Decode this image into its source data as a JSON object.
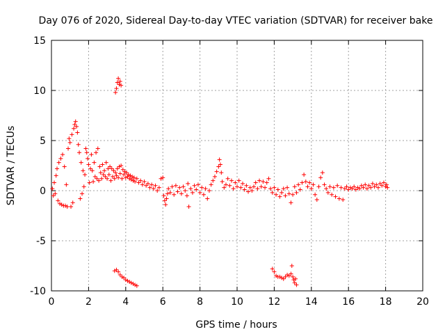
{
  "chart_data": {
    "type": "scatter",
    "title": "Day 076 of 2020, Sidereal Day-to-day VTEC variation (SDTVAR) for receiver bake",
    "xlabel": "GPS time / hours",
    "ylabel": "SDTVAR / TECUs",
    "xlim": [
      0,
      20
    ],
    "ylim": [
      -10,
      15
    ],
    "xticks": [
      0,
      2,
      4,
      6,
      8,
      10,
      12,
      14,
      16,
      18,
      20
    ],
    "yticks": [
      -10,
      -5,
      0,
      5,
      10,
      15
    ],
    "grid": true,
    "marker": "+",
    "color": "#ff0000",
    "series": [
      {
        "name": "SDTVAR",
        "points": [
          [
            0.05,
            0.2
          ],
          [
            0.1,
            -0.5
          ],
          [
            0.15,
            0.8
          ],
          [
            0.2,
            -0.3
          ],
          [
            0.25,
            1.5
          ],
          [
            0.3,
            2.2
          ],
          [
            0.35,
            -1.0
          ],
          [
            0.4,
            2.8
          ],
          [
            0.45,
            -1.3
          ],
          [
            0.5,
            3.2
          ],
          [
            0.55,
            -1.4
          ],
          [
            0.6,
            3.6
          ],
          [
            0.65,
            -1.5
          ],
          [
            0.7,
            2.4
          ],
          [
            0.75,
            -1.5
          ],
          [
            0.8,
            0.6
          ],
          [
            0.85,
            -1.6
          ],
          [
            0.9,
            4.2
          ],
          [
            0.95,
            5.2
          ],
          [
            1.0,
            4.8
          ],
          [
            1.05,
            -1.6
          ],
          [
            1.1,
            5.6
          ],
          [
            1.15,
            -1.2
          ],
          [
            1.2,
            6.2
          ],
          [
            1.25,
            6.6
          ],
          [
            1.3,
            6.9
          ],
          [
            1.35,
            6.4
          ],
          [
            1.4,
            5.8
          ],
          [
            1.45,
            4.6
          ],
          [
            1.5,
            3.8
          ],
          [
            1.55,
            -0.8
          ],
          [
            1.6,
            2.8
          ],
          [
            1.65,
            -0.3
          ],
          [
            1.7,
            2.0
          ],
          [
            1.75,
            0.4
          ],
          [
            1.8,
            1.6
          ],
          [
            1.85,
            4.2
          ],
          [
            1.9,
            3.8
          ],
          [
            1.95,
            3.2
          ],
          [
            2.0,
            2.6
          ],
          [
            2.05,
            0.8
          ],
          [
            2.1,
            2.2
          ],
          [
            2.15,
            3.6
          ],
          [
            2.2,
            2.0
          ],
          [
            2.25,
            0.9
          ],
          [
            2.3,
            2.8
          ],
          [
            2.35,
            1.4
          ],
          [
            2.4,
            3.8
          ],
          [
            2.45,
            1.2
          ],
          [
            2.5,
            4.2
          ],
          [
            2.55,
            1.0
          ],
          [
            2.6,
            2.4
          ],
          [
            2.65,
            1.8
          ],
          [
            2.7,
            1.2
          ],
          [
            2.75,
            2.6
          ],
          [
            2.8,
            1.6
          ],
          [
            2.85,
            2.0
          ],
          [
            2.9,
            1.4
          ],
          [
            2.95,
            2.8
          ],
          [
            3.0,
            1.2
          ],
          [
            3.05,
            2.2
          ],
          [
            3.1,
            1.6
          ],
          [
            3.15,
            2.4
          ],
          [
            3.2,
            1.0
          ],
          [
            3.25,
            2.2
          ],
          [
            3.3,
            1.4
          ],
          [
            3.35,
            2.0
          ],
          [
            3.4,
            1.2
          ],
          [
            3.45,
            1.8
          ],
          [
            3.5,
            1.5
          ],
          [
            3.55,
            2.2
          ],
          [
            3.6,
            1.3
          ],
          [
            3.65,
            2.4
          ],
          [
            3.7,
            1.7
          ],
          [
            3.75,
            2.5
          ],
          [
            3.8,
            1.2
          ],
          [
            3.85,
            2.1
          ],
          [
            3.9,
            1.6
          ],
          [
            3.95,
            1.9
          ],
          [
            4.0,
            1.3
          ],
          [
            4.05,
            1.8
          ],
          [
            4.1,
            1.4
          ],
          [
            4.15,
            1.6
          ],
          [
            4.2,
            1.2
          ],
          [
            4.25,
            1.5
          ],
          [
            4.3,
            1.1
          ],
          [
            4.35,
            1.4
          ],
          [
            4.4,
            1.0
          ],
          [
            4.45,
            1.3
          ],
          [
            4.5,
            0.9
          ],
          [
            4.6,
            1.2
          ],
          [
            4.7,
            0.8
          ],
          [
            4.8,
            1.0
          ],
          [
            4.9,
            0.6
          ],
          [
            5.0,
            0.9
          ],
          [
            5.1,
            0.5
          ],
          [
            5.2,
            0.7
          ],
          [
            5.3,
            0.3
          ],
          [
            5.4,
            0.6
          ],
          [
            5.5,
            0.2
          ],
          [
            5.6,
            0.5
          ],
          [
            5.7,
            0.0
          ],
          [
            5.8,
            0.3
          ],
          [
            5.9,
            1.2
          ],
          [
            6.0,
            1.3
          ],
          [
            6.05,
            -0.5
          ],
          [
            6.1,
            -1.0
          ],
          [
            6.15,
            -1.4
          ],
          [
            6.2,
            -0.8
          ],
          [
            6.25,
            -0.3
          ],
          [
            6.3,
            0.2
          ],
          [
            6.4,
            -0.2
          ],
          [
            6.5,
            0.4
          ],
          [
            6.6,
            -0.4
          ],
          [
            6.7,
            0.5
          ],
          [
            6.8,
            -0.1
          ],
          [
            6.9,
            0.3
          ],
          [
            7.0,
            -0.3
          ],
          [
            7.1,
            0.4
          ],
          [
            7.2,
            0.0
          ],
          [
            7.3,
            -0.5
          ],
          [
            7.35,
            0.7
          ],
          [
            7.4,
            -1.6
          ],
          [
            7.5,
            0.2
          ],
          [
            7.6,
            -0.2
          ],
          [
            7.7,
            0.5
          ],
          [
            7.8,
            0.1
          ],
          [
            7.9,
            0.6
          ],
          [
            8.0,
            -0.2
          ],
          [
            8.1,
            0.3
          ],
          [
            8.2,
            -0.4
          ],
          [
            8.3,
            0.2
          ],
          [
            8.4,
            -0.8
          ],
          [
            8.5,
            0.0
          ],
          [
            8.6,
            0.6
          ],
          [
            8.7,
            1.0
          ],
          [
            8.8,
            1.4
          ],
          [
            8.9,
            1.9
          ],
          [
            9.0,
            2.4
          ],
          [
            9.05,
            3.1
          ],
          [
            9.1,
            2.6
          ],
          [
            9.15,
            1.8
          ],
          [
            9.2,
            0.9
          ],
          [
            9.3,
            0.3
          ],
          [
            9.4,
            0.6
          ],
          [
            9.5,
            1.2
          ],
          [
            9.6,
            0.5
          ],
          [
            9.7,
            1.0
          ],
          [
            9.8,
            0.2
          ],
          [
            9.9,
            0.8
          ],
          [
            10.0,
            0.4
          ],
          [
            10.1,
            1.0
          ],
          [
            10.2,
            0.3
          ],
          [
            10.3,
            0.7
          ],
          [
            10.4,
            0.1
          ],
          [
            10.5,
            0.5
          ],
          [
            10.6,
            -0.1
          ],
          [
            10.7,
            0.3
          ],
          [
            10.8,
            0.0
          ],
          [
            10.9,
            0.4
          ],
          [
            11.0,
            0.8
          ],
          [
            11.1,
            0.2
          ],
          [
            11.2,
            1.0
          ],
          [
            11.3,
            0.4
          ],
          [
            11.4,
            0.9
          ],
          [
            11.5,
            0.3
          ],
          [
            11.6,
            0.8
          ],
          [
            11.7,
            1.2
          ],
          [
            11.8,
            0.2
          ],
          [
            11.9,
            -0.2
          ],
          [
            12.0,
            0.3
          ],
          [
            12.1,
            -0.4
          ],
          [
            12.2,
            0.1
          ],
          [
            12.3,
            -0.6
          ],
          [
            12.4,
            -0.2
          ],
          [
            12.5,
            0.2
          ],
          [
            12.6,
            -0.5
          ],
          [
            12.7,
            0.3
          ],
          [
            12.8,
            -0.3
          ],
          [
            12.9,
            -1.2
          ],
          [
            13.0,
            -0.4
          ],
          [
            13.1,
            0.4
          ],
          [
            13.2,
            -0.2
          ],
          [
            13.3,
            0.6
          ],
          [
            13.4,
            0.1
          ],
          [
            13.5,
            0.8
          ],
          [
            13.6,
            1.6
          ],
          [
            13.7,
            0.9
          ],
          [
            13.8,
            0.4
          ],
          [
            13.9,
            0.8
          ],
          [
            14.0,
            0.2
          ],
          [
            14.1,
            0.6
          ],
          [
            14.2,
            -0.4
          ],
          [
            14.3,
            -0.9
          ],
          [
            14.4,
            0.4
          ],
          [
            14.5,
            1.3
          ],
          [
            14.6,
            1.8
          ],
          [
            14.7,
            0.6
          ],
          [
            14.8,
            0.2
          ],
          [
            14.9,
            -0.2
          ],
          [
            15.0,
            0.4
          ],
          [
            15.1,
            -0.4
          ],
          [
            15.2,
            0.3
          ],
          [
            15.3,
            -0.6
          ],
          [
            15.4,
            0.5
          ],
          [
            15.5,
            -0.8
          ],
          [
            15.6,
            0.3
          ],
          [
            15.7,
            -0.9
          ],
          [
            15.8,
            0.2
          ],
          [
            15.9,
            0.4
          ],
          [
            16.0,
            0.1
          ],
          [
            16.1,
            0.3
          ],
          [
            16.2,
            0.2
          ],
          [
            16.3,
            0.4
          ],
          [
            16.4,
            0.1
          ],
          [
            16.5,
            0.3
          ],
          [
            16.6,
            0.2
          ],
          [
            16.7,
            0.5
          ],
          [
            16.8,
            0.3
          ],
          [
            16.9,
            0.6
          ],
          [
            17.0,
            0.2
          ],
          [
            17.1,
            0.5
          ],
          [
            17.2,
            0.3
          ],
          [
            17.3,
            0.7
          ],
          [
            17.4,
            0.4
          ],
          [
            17.5,
            0.6
          ],
          [
            17.6,
            0.3
          ],
          [
            17.7,
            0.7
          ],
          [
            17.8,
            0.5
          ],
          [
            17.9,
            0.8
          ],
          [
            18.0,
            0.4
          ],
          [
            18.05,
            0.6
          ],
          [
            18.1,
            0.3
          ],
          [
            3.45,
            9.8
          ],
          [
            3.5,
            10.2
          ],
          [
            3.55,
            10.8
          ],
          [
            3.6,
            11.2
          ],
          [
            3.65,
            10.6
          ],
          [
            3.7,
            10.9
          ],
          [
            3.75,
            10.5
          ],
          [
            3.4,
            -8.0
          ],
          [
            3.5,
            -7.9
          ],
          [
            3.6,
            -8.1
          ],
          [
            3.7,
            -8.4
          ],
          [
            3.8,
            -8.6
          ],
          [
            3.9,
            -8.7
          ],
          [
            4.0,
            -8.9
          ],
          [
            4.1,
            -9.0
          ],
          [
            4.2,
            -9.1
          ],
          [
            4.3,
            -9.2
          ],
          [
            4.4,
            -9.3
          ],
          [
            4.5,
            -9.4
          ],
          [
            4.6,
            -9.5
          ],
          [
            11.9,
            -7.8
          ],
          [
            12.0,
            -8.1
          ],
          [
            12.1,
            -8.5
          ],
          [
            12.2,
            -8.6
          ],
          [
            12.3,
            -8.6
          ],
          [
            12.4,
            -8.7
          ],
          [
            12.5,
            -8.8
          ],
          [
            12.6,
            -8.6
          ],
          [
            12.7,
            -8.4
          ],
          [
            12.8,
            -8.5
          ],
          [
            12.9,
            -8.3
          ],
          [
            12.95,
            -7.5
          ],
          [
            13.0,
            -8.6
          ],
          [
            13.05,
            -8.9
          ],
          [
            13.1,
            -9.2
          ],
          [
            13.15,
            -8.8
          ],
          [
            13.2,
            -9.4
          ]
        ]
      }
    ]
  }
}
